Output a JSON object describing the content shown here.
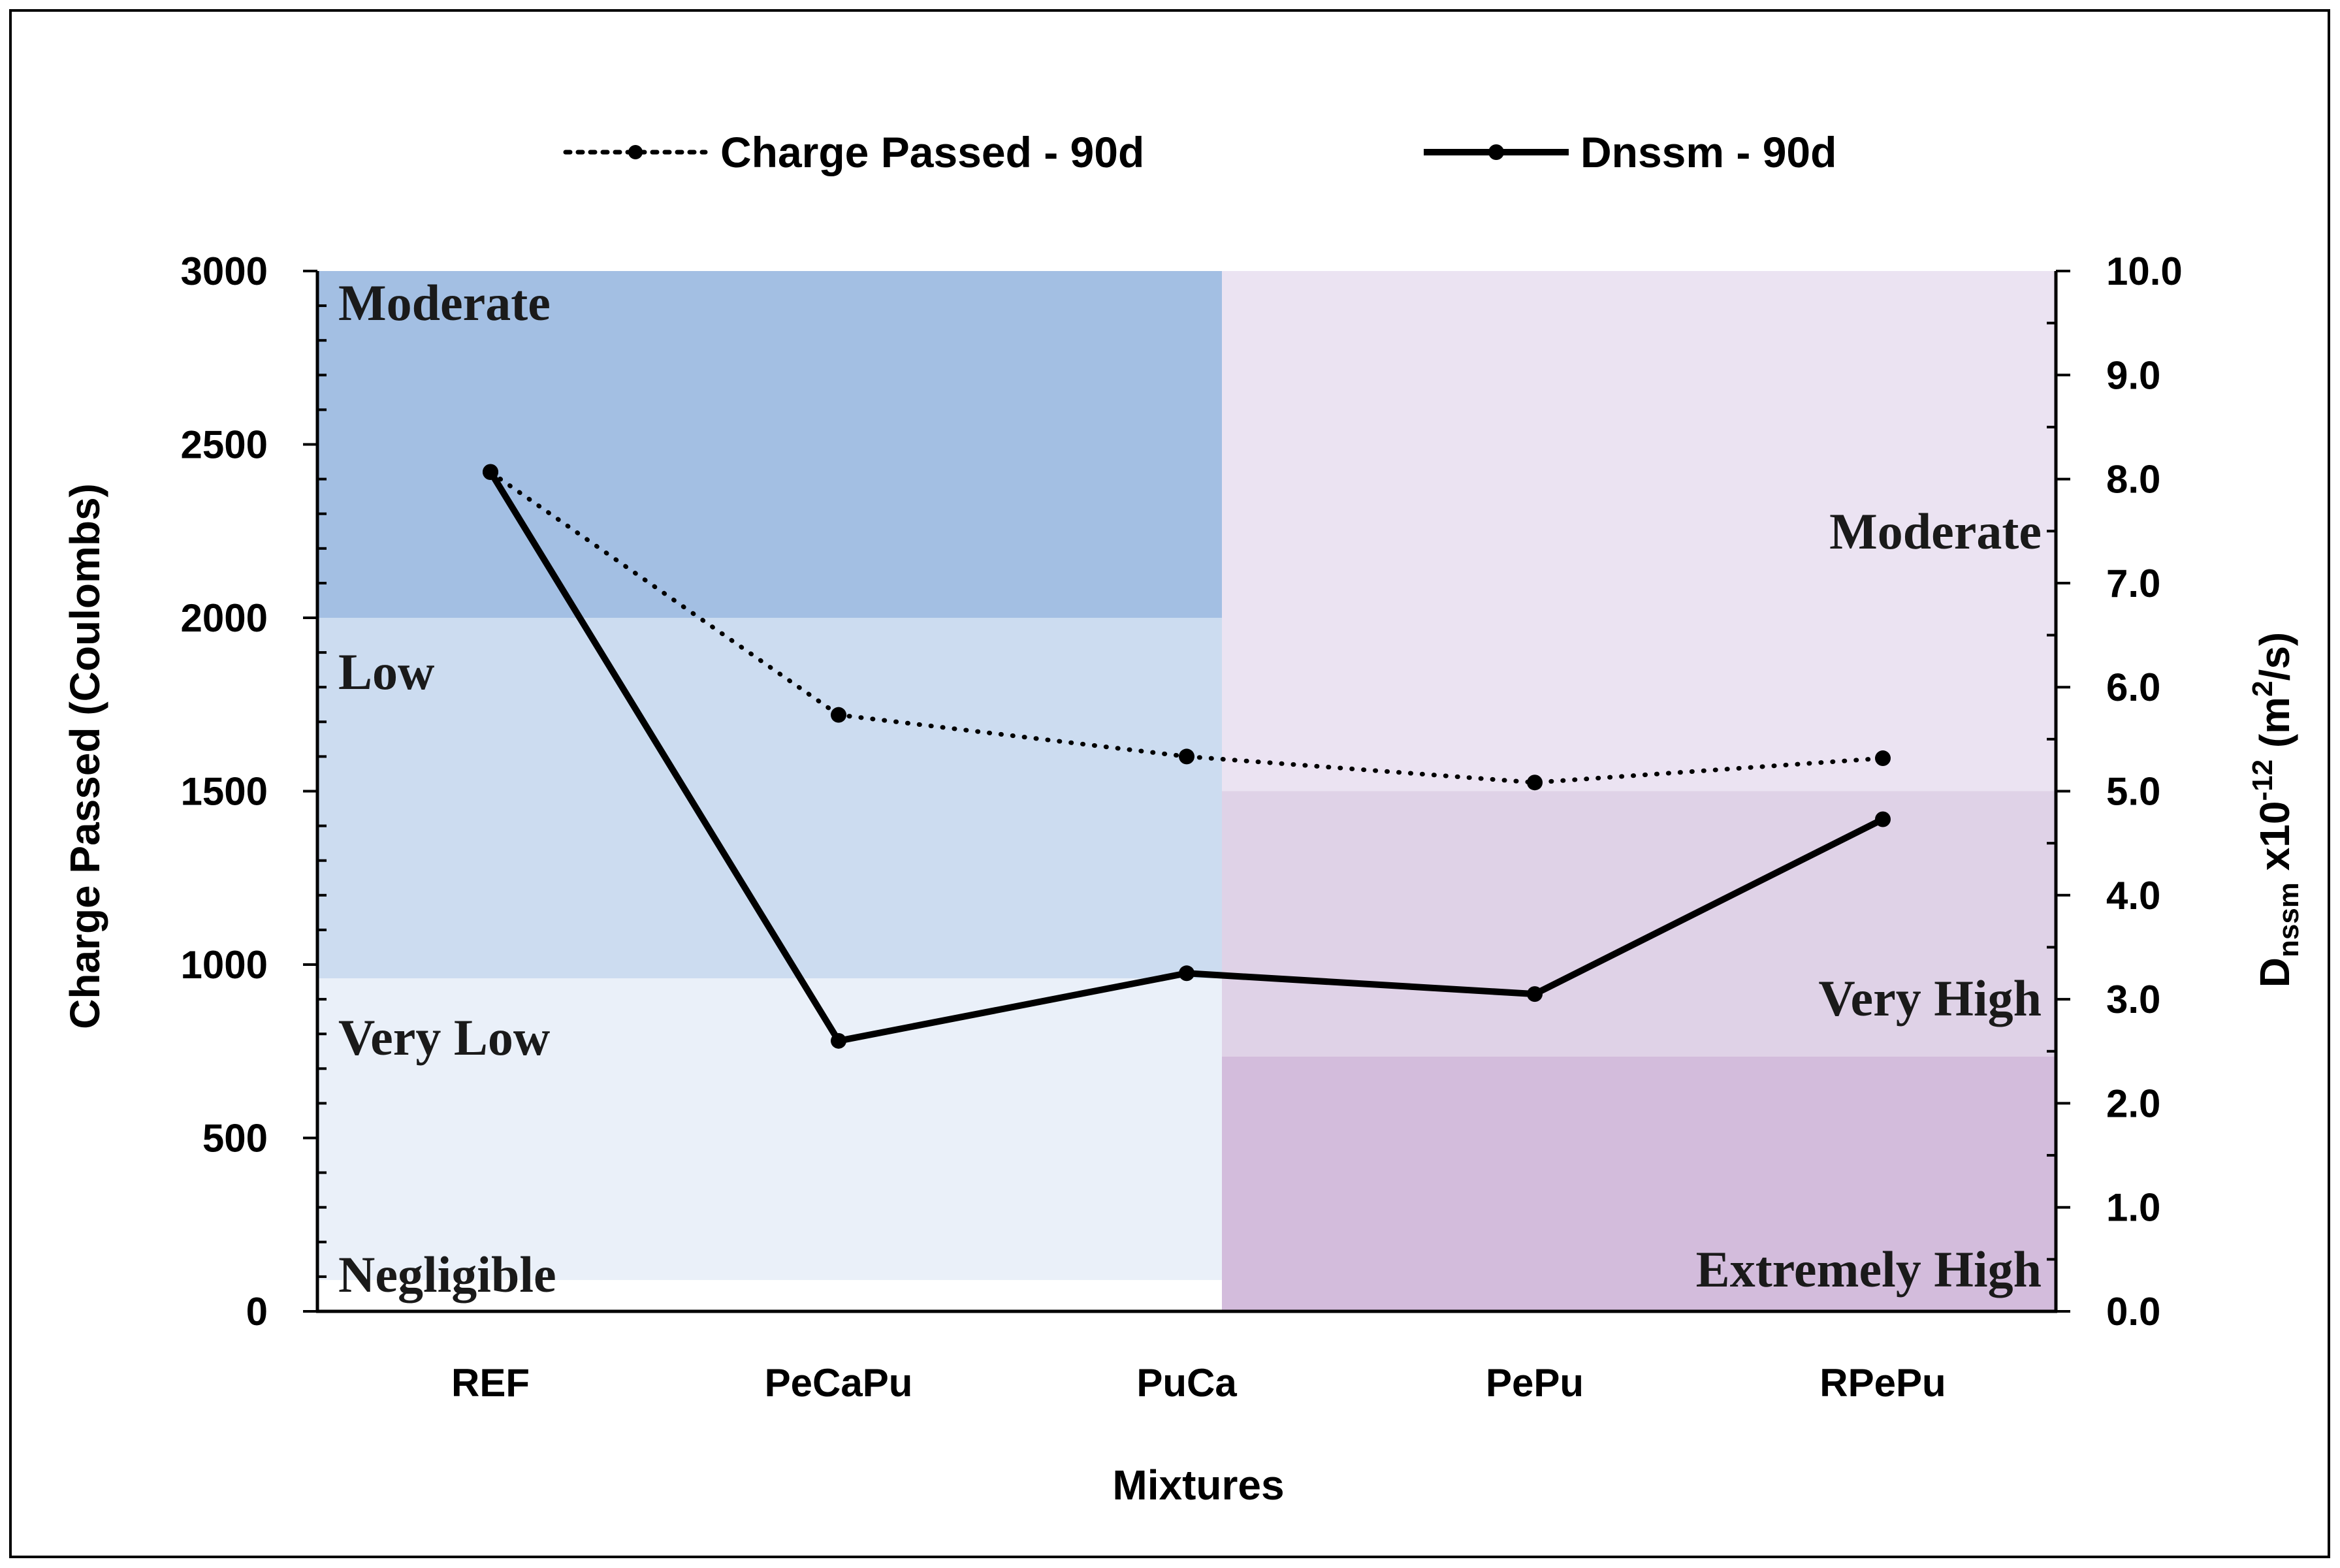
{
  "chart_data": {
    "type": "line",
    "title": "",
    "categories": [
      "REF",
      "PeCaPu",
      "PuCa",
      "PePu",
      "RPePu"
    ],
    "xlabel": "Mixtures",
    "ylabel": "Charge Passed (Coulombs)",
    "y2label": {
      "prefix": "D",
      "subscript": "nssm",
      "middle": " x10",
      "superscript": "-12",
      "unit_open": " (m",
      "unit_sup": "2",
      "unit_close": "/s)"
    },
    "ylim": [
      0,
      3000
    ],
    "y2lim": [
      0,
      10
    ],
    "yticks": [
      "0",
      "500",
      "1000",
      "1500",
      "2000",
      "2500",
      "3000"
    ],
    "y2ticks": [
      "0.0",
      "1.0",
      "2.0",
      "3.0",
      "4.0",
      "5.0",
      "6.0",
      "7.0",
      "8.0",
      "9.0",
      "10.0"
    ],
    "series": [
      {
        "name": "Charge Passed - 90d",
        "axis": "left",
        "style": "dotted",
        "values": [
          2420,
          1720,
          1600,
          1525,
          1595
        ]
      },
      {
        "name": "Dnssm - 90d",
        "axis": "right",
        "style": "solid",
        "values": [
          8.07,
          2.6,
          3.25,
          3.05,
          4.73
        ]
      }
    ],
    "left_zones": [
      {
        "label": "Moderate",
        "from": 2000,
        "to": 3000,
        "color": "#a3bfe3"
      },
      {
        "label": "Low",
        "from": 960,
        "to": 2000,
        "color": "#ccdcf0"
      },
      {
        "label": "Very Low",
        "from": 90,
        "to": 960,
        "color": "#eaf0f9"
      },
      {
        "label": "Negligible",
        "from": 0,
        "to": 90,
        "color": "#ffffff"
      }
    ],
    "right_zones": [
      {
        "label": "Moderate",
        "from": 5.0,
        "to": 10.0,
        "color": "#ebe3f2"
      },
      {
        "label": "Very High",
        "from": 2.45,
        "to": 5.0,
        "color": "#dfd2e7"
      },
      {
        "label": "Extremely High",
        "from": 0,
        "to": 2.45,
        "color": "#d3bcdc"
      }
    ],
    "legend_position": "top-center",
    "grid": false
  }
}
